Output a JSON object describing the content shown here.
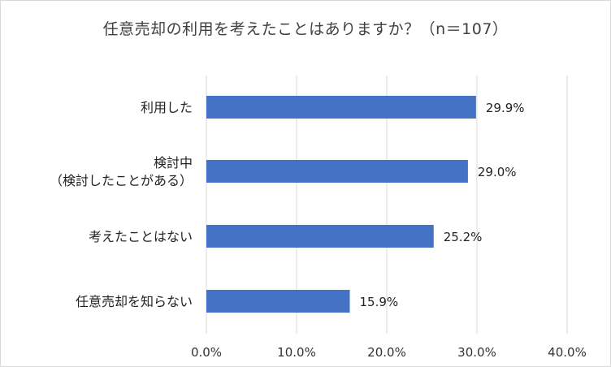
{
  "chart_data": {
    "type": "bar",
    "orientation": "horizontal",
    "title": "任意売却の利用を考えたことはありますか？（n＝107）",
    "categories": [
      [
        "利用した"
      ],
      [
        "検討中",
        "（検討したことがある）"
      ],
      [
        "考えたことはない"
      ],
      [
        "任意売却を知らない"
      ]
    ],
    "values": [
      29.9,
      29.0,
      25.2,
      15.9
    ],
    "data_labels": [
      "29.9%",
      "29.0%",
      "25.2%",
      "15.9%"
    ],
    "xlim": [
      0,
      40
    ],
    "xticks": [
      0,
      10,
      20,
      30,
      40
    ],
    "xtick_labels": [
      "0.0%",
      "10.0%",
      "20.0%",
      "30.0%",
      "40.0%"
    ],
    "grid": "vertical",
    "bar_color": "#4472c4",
    "grid_color": "#d9d9d9",
    "legend": "none"
  }
}
